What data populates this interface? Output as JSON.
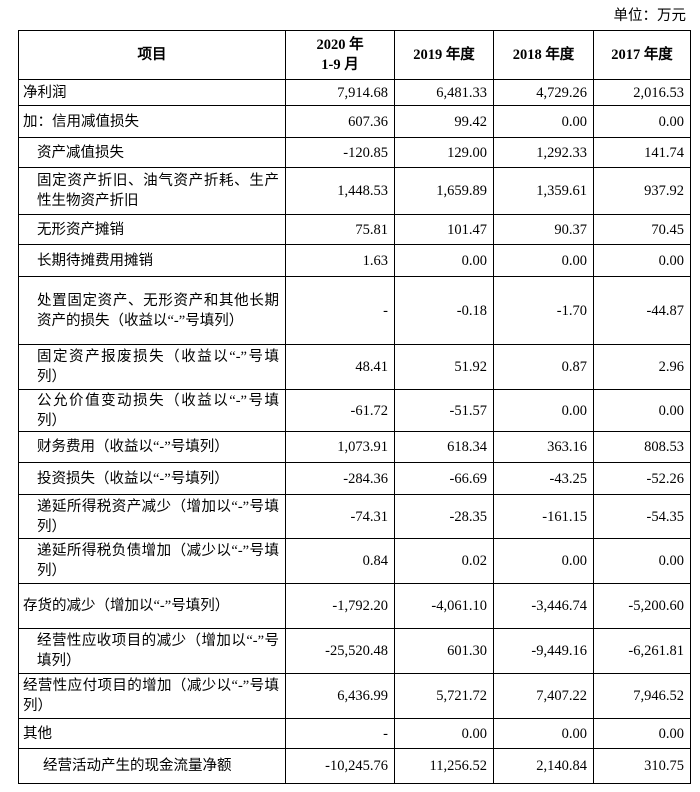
{
  "unit": "单位：万元",
  "table": {
    "header": [
      "项目",
      [
        "2020 年",
        "1-9 月"
      ],
      "2019 年度",
      "2018 年度",
      "2017 年度"
    ],
    "rows": [
      [
        "净利润",
        "7,914.68",
        "6,481.33",
        "4,729.26",
        "2,016.53"
      ],
      [
        "加：信用减值损失",
        "607.36",
        "99.42",
        "0.00",
        "0.00"
      ],
      [
        "资产减值损失",
        "-120.85",
        "129.00",
        "1,292.33",
        "141.74"
      ],
      [
        "固定资产折旧、油气资产折耗、生产性生物资产折旧",
        "1,448.53",
        "1,659.89",
        "1,359.61",
        "937.92"
      ],
      [
        "无形资产摊销",
        "75.81",
        "101.47",
        "90.37",
        "70.45"
      ],
      [
        "长期待摊费用摊销",
        "1.63",
        "0.00",
        "0.00",
        "0.00"
      ],
      [
        "处置固定资产、无形资产和其他长期资产的损失（收益以“-”号填列）",
        "-",
        "-0.18",
        "-1.70",
        "-44.87"
      ],
      [
        "固定资产报废损失（收益以“-”号填列）",
        "48.41",
        "51.92",
        "0.87",
        "2.96"
      ],
      [
        "公允价值变动损失（收益以“-”号填列）",
        "-61.72",
        "-51.57",
        "0.00",
        "0.00"
      ],
      [
        "财务费用（收益以“-”号填列）",
        "1,073.91",
        "618.34",
        "363.16",
        "808.53"
      ],
      [
        "投资损失（收益以“-”号填列）",
        "-284.36",
        "-66.69",
        "-43.25",
        "-52.26"
      ],
      [
        "递延所得税资产减少（增加以“-”号填列）",
        "-74.31",
        "-28.35",
        "-161.15",
        "-54.35"
      ],
      [
        "递延所得税负债增加（减少以“-”号填列）",
        "0.84",
        "0.02",
        "0.00",
        "0.00"
      ],
      [
        "存货的减少（增加以“-”号填列）",
        "-1,792.20",
        "-4,061.10",
        "-3,446.74",
        "-5,200.60"
      ],
      [
        "经营性应收项目的减少（增加以“-”号填列）",
        "-25,520.48",
        "601.30",
        "-9,449.16",
        "-6,261.81"
      ],
      [
        "经营性应付项目的增加（减少以“-”号填列）",
        "6,436.99",
        "5,721.72",
        "7,407.22",
        "7,946.52"
      ],
      [
        "其他",
        "-",
        "0.00",
        "0.00",
        "0.00"
      ],
      [
        "经营活动产生的现金流量净额",
        "-10,245.76",
        "11,256.52",
        "2,140.84",
        "310.75"
      ]
    ]
  }
}
